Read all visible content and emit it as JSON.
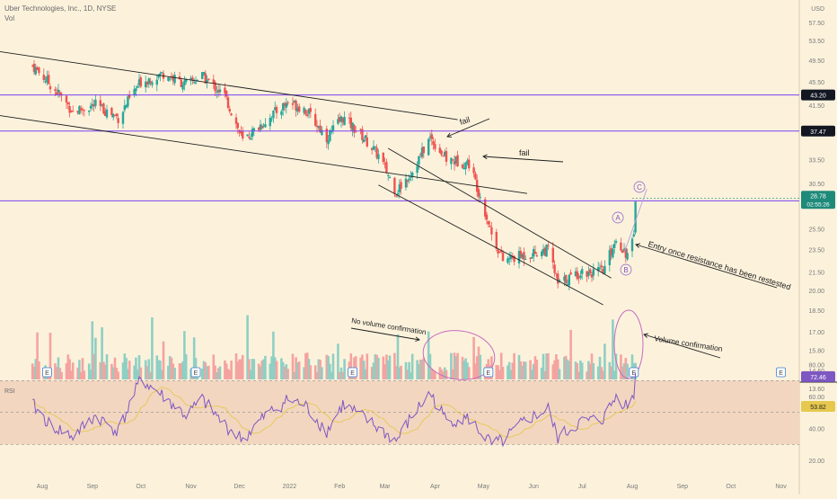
{
  "header": {
    "symbol_line": "Uber Technologies, Inc., 1D, NYSE",
    "volume_label": "Vol"
  },
  "colors": {
    "background": "#fcf2dc",
    "bull": "#26a69a",
    "bear": "#ef5350",
    "bull_volume": "#8fcfc4",
    "bear_volume": "#f5a3a0",
    "hline": "#7b3ff2",
    "rsi_line": "#7e57c2",
    "rsi_ma": "#e6c84f",
    "rsi_band": "#f2d6c0",
    "annotation_circle": "#c76bbf",
    "trendline": "#1e1e1e",
    "price_tag": "#131722",
    "last_tag": "#1e8a7a"
  },
  "chart_data": {
    "type": "candlestick",
    "symbol": "Uber Technologies, Inc.",
    "interval": "1D",
    "exchange": "NYSE",
    "currency": "USD",
    "price_axis": {
      "ticks": [
        "57.50",
        "53.50",
        "49.50",
        "45.50",
        "41.50",
        "33.50",
        "30.50",
        "25.50",
        "23.50",
        "21.50",
        "20.00",
        "18.50",
        "17.00",
        "15.80",
        "14.60",
        "13.60"
      ],
      "scale": "log",
      "range": [
        13.0,
        62.0
      ]
    },
    "time_axis": {
      "labels": [
        "Aug",
        "Sep",
        "Oct",
        "Nov",
        "Dec",
        "2022",
        "Feb",
        "Mar",
        "Apr",
        "May",
        "Jun",
        "Jul",
        "Aug",
        "Sep",
        "Oct",
        "Nov"
      ]
    },
    "horizontal_levels": [
      {
        "value": 43.2,
        "label": "43.20"
      },
      {
        "value": 37.47,
        "label": "37.47"
      },
      {
        "value": 28.47,
        "label": "28.47"
      }
    ],
    "last_price": {
      "value": 28.78,
      "label": "28.78",
      "countdown": "02:55:26"
    },
    "price_points": [
      {
        "date": "2021-07-26",
        "price": 48.5
      },
      {
        "date": "2021-08-06",
        "price": 45.0
      },
      {
        "date": "2021-08-20",
        "price": 40.5
      },
      {
        "date": "2021-09-03",
        "price": 41.5
      },
      {
        "date": "2021-09-17",
        "price": 39.5
      },
      {
        "date": "2021-10-01",
        "price": 45.5
      },
      {
        "date": "2021-10-15",
        "price": 47.0
      },
      {
        "date": "2021-10-29",
        "price": 45.0
      },
      {
        "date": "2021-11-08",
        "price": 46.5
      },
      {
        "date": "2021-11-22",
        "price": 43.0
      },
      {
        "date": "2021-12-03",
        "price": 36.0
      },
      {
        "date": "2021-12-17",
        "price": 39.0
      },
      {
        "date": "2021-12-31",
        "price": 42.0
      },
      {
        "date": "2022-01-10",
        "price": 41.0
      },
      {
        "date": "2022-01-24",
        "price": 36.5
      },
      {
        "date": "2022-02-03",
        "price": 39.5
      },
      {
        "date": "2022-02-14",
        "price": 37.0
      },
      {
        "date": "2022-02-25",
        "price": 34.0
      },
      {
        "date": "2022-03-08",
        "price": 29.5
      },
      {
        "date": "2022-03-18",
        "price": 32.0
      },
      {
        "date": "2022-03-29",
        "price": 36.5
      },
      {
        "date": "2022-04-08",
        "price": 33.5
      },
      {
        "date": "2022-04-22",
        "price": 33.0
      },
      {
        "date": "2022-05-06",
        "price": 25.0
      },
      {
        "date": "2022-05-13",
        "price": 22.5
      },
      {
        "date": "2022-05-27",
        "price": 23.0
      },
      {
        "date": "2022-06-10",
        "price": 23.5
      },
      {
        "date": "2022-06-16",
        "price": 20.5
      },
      {
        "date": "2022-06-30",
        "price": 21.5
      },
      {
        "date": "2022-07-14",
        "price": 21.5
      },
      {
        "date": "2022-07-22",
        "price": 24.5
      },
      {
        "date": "2022-07-29",
        "price": 23.0
      },
      {
        "date": "2022-08-02",
        "price": 24.5
      },
      {
        "date": "2022-08-03",
        "price": 28.78
      }
    ],
    "rsi": {
      "label": "RSI",
      "ticks": [
        "80.00",
        "60.00",
        "40.00",
        "20.00"
      ],
      "upper": 70,
      "lower": 30,
      "value": 72.46,
      "value_label": "72.46",
      "ma_value": 53.82,
      "ma_label": "53.82",
      "points": [
        {
          "date": "2021-07-26",
          "value": 55
        },
        {
          "date": "2021-08-06",
          "value": 42
        },
        {
          "date": "2021-08-20",
          "value": 35
        },
        {
          "date": "2021-09-03",
          "value": 48
        },
        {
          "date": "2021-09-17",
          "value": 38
        },
        {
          "date": "2021-10-01",
          "value": 71
        },
        {
          "date": "2021-10-15",
          "value": 60
        },
        {
          "date": "2021-10-29",
          "value": 48
        },
        {
          "date": "2021-11-08",
          "value": 58
        },
        {
          "date": "2021-11-22",
          "value": 42
        },
        {
          "date": "2021-12-03",
          "value": 33
        },
        {
          "date": "2021-12-17",
          "value": 48
        },
        {
          "date": "2021-12-31",
          "value": 58
        },
        {
          "date": "2022-01-10",
          "value": 55
        },
        {
          "date": "2022-01-24",
          "value": 38
        },
        {
          "date": "2022-02-03",
          "value": 55
        },
        {
          "date": "2022-02-14",
          "value": 48
        },
        {
          "date": "2022-02-25",
          "value": 40
        },
        {
          "date": "2022-03-08",
          "value": 32
        },
        {
          "date": "2022-03-18",
          "value": 48
        },
        {
          "date": "2022-03-29",
          "value": 62
        },
        {
          "date": "2022-04-08",
          "value": 45
        },
        {
          "date": "2022-04-22",
          "value": 46
        },
        {
          "date": "2022-05-06",
          "value": 30
        },
        {
          "date": "2022-05-13",
          "value": 32
        },
        {
          "date": "2022-05-27",
          "value": 45
        },
        {
          "date": "2022-06-10",
          "value": 52
        },
        {
          "date": "2022-06-16",
          "value": 34
        },
        {
          "date": "2022-06-30",
          "value": 44
        },
        {
          "date": "2022-07-14",
          "value": 46
        },
        {
          "date": "2022-07-22",
          "value": 60
        },
        {
          "date": "2022-07-29",
          "value": 54
        },
        {
          "date": "2022-08-02",
          "value": 62
        },
        {
          "date": "2022-08-03",
          "value": 72.46
        }
      ]
    },
    "earnings_markers": [
      {
        "date": "2021-08-04",
        "label": "E"
      },
      {
        "date": "2021-11-04",
        "label": "E"
      },
      {
        "date": "2022-02-09",
        "label": "E"
      },
      {
        "date": "2022-05-04",
        "label": "E"
      },
      {
        "date": "2022-08-02",
        "label": "E"
      },
      {
        "date": "2022-11-01",
        "label": "E"
      }
    ],
    "wave_labels": [
      "A",
      "B",
      "C"
    ],
    "annotations": [
      {
        "text": "fail"
      },
      {
        "text": "fail"
      },
      {
        "text": "Entry once resistance has been restested"
      },
      {
        "text": "No volume confirmation"
      },
      {
        "text": "Volume confirmation"
      }
    ]
  }
}
